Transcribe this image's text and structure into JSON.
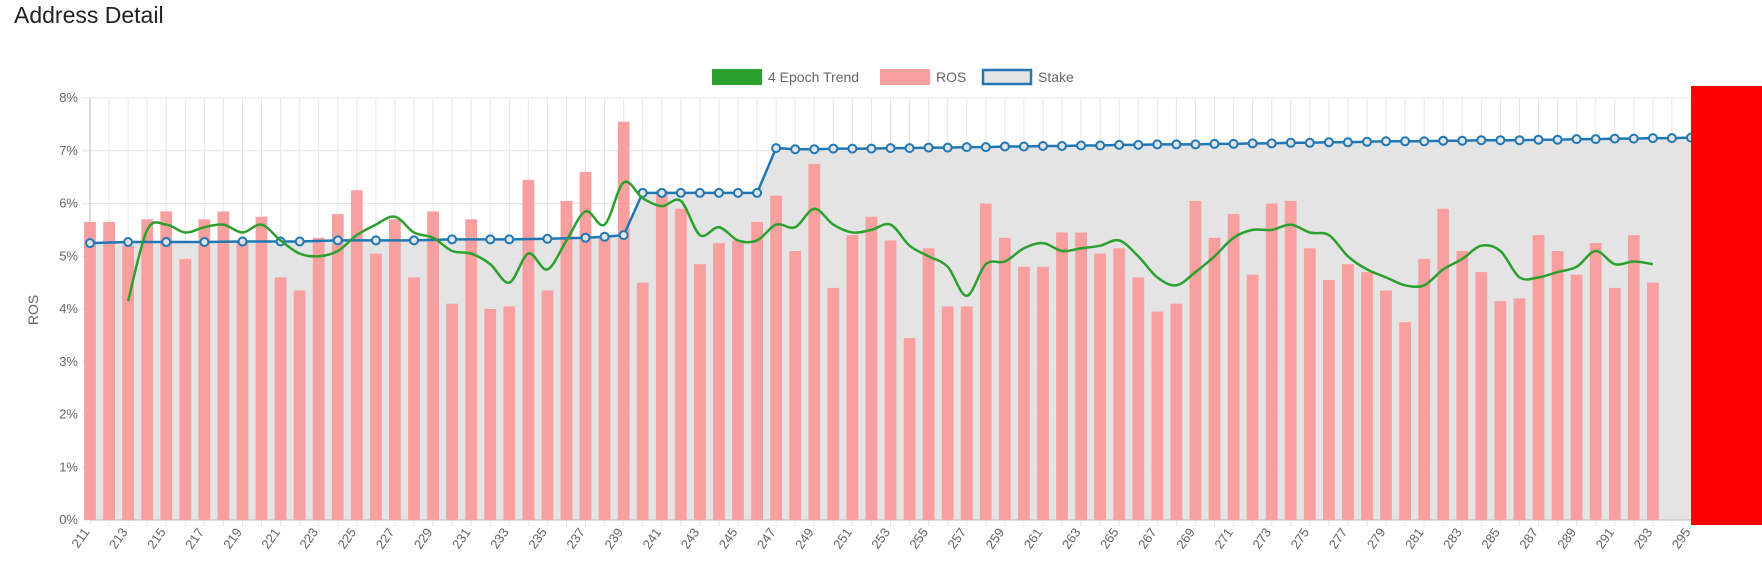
{
  "page": {
    "title": "Address Detail"
  },
  "colors": {
    "trend": "#2ca02c",
    "ros_fill": "#f8a0a0",
    "stake_line": "#1f77b4",
    "stake_fill": "#e4e4e4",
    "grid": "#e6e6e6",
    "overlay": "#ff0000"
  },
  "chart_data": {
    "type": "bar",
    "title": "",
    "legend": [
      "4 Epoch Trend",
      "ROS",
      "Stake"
    ],
    "legend_position": "top-center",
    "ylabel": "ROS",
    "ylim": [
      0,
      8
    ],
    "yticks": [
      "0%",
      "1%",
      "2%",
      "3%",
      "4%",
      "5%",
      "6%",
      "7%",
      "8%"
    ],
    "xlim": [
      211,
      295
    ],
    "grid": true,
    "series": [
      {
        "name": "ROS",
        "type": "bar",
        "x": [
          211,
          212,
          213,
          214,
          215,
          216,
          217,
          218,
          219,
          220,
          221,
          222,
          223,
          224,
          225,
          226,
          227,
          228,
          229,
          230,
          231,
          232,
          233,
          234,
          235,
          236,
          237,
          238,
          239,
          240,
          241,
          242,
          243,
          244,
          245,
          246,
          247,
          248,
          249,
          250,
          251,
          252,
          253,
          254,
          255,
          256,
          257,
          258,
          259,
          260,
          261,
          262,
          263,
          264,
          265,
          266,
          267,
          268,
          269,
          270,
          271,
          272,
          273,
          274,
          275,
          276,
          277,
          278,
          279,
          280,
          281,
          282,
          283,
          284,
          285,
          286,
          287,
          288,
          289,
          290,
          291,
          292,
          293
        ],
        "values": [
          5.65,
          5.65,
          5.2,
          5.7,
          5.85,
          4.95,
          5.7,
          5.85,
          5.25,
          5.75,
          4.6,
          4.35,
          5.35,
          5.8,
          6.25,
          5.05,
          5.7,
          4.6,
          5.85,
          4.1,
          5.7,
          4.0,
          4.05,
          6.45,
          4.35,
          6.05,
          6.6,
          5.35,
          7.55,
          4.5,
          6.25,
          5.9,
          4.85,
          5.25,
          5.3,
          5.65,
          6.15,
          5.1,
          6.75,
          4.4,
          5.4,
          5.75,
          5.3,
          3.45,
          5.15,
          4.05,
          4.05,
          6.0,
          5.35,
          4.8,
          4.8,
          5.45,
          5.45,
          5.05,
          5.15,
          4.6,
          3.95,
          4.1,
          6.05,
          5.35,
          5.8,
          4.65,
          6.0,
          6.05,
          5.15,
          4.55,
          4.85,
          4.7,
          4.35,
          3.75,
          4.95,
          5.9,
          5.1,
          4.7,
          4.15,
          4.2,
          5.4,
          5.1,
          4.65,
          5.25,
          4.4,
          5.4,
          4.5
        ]
      },
      {
        "name": "4 Epoch Trend",
        "type": "line",
        "x": [
          213,
          214,
          215,
          216,
          217,
          218,
          219,
          220,
          221,
          222,
          223,
          224,
          225,
          226,
          227,
          228,
          229,
          230,
          231,
          232,
          233,
          234,
          235,
          236,
          237,
          238,
          239,
          240,
          241,
          242,
          243,
          244,
          245,
          246,
          247,
          248,
          249,
          250,
          251,
          252,
          253,
          254,
          255,
          256,
          257,
          258,
          259,
          260,
          261,
          262,
          263,
          264,
          265,
          266,
          267,
          268,
          269,
          270,
          271,
          272,
          273,
          274,
          275,
          276,
          277,
          278,
          279,
          280,
          281,
          282,
          283,
          284,
          285,
          286,
          287,
          288,
          289,
          290,
          291,
          292,
          293
        ],
        "values": [
          4.15,
          5.5,
          5.6,
          5.45,
          5.55,
          5.6,
          5.45,
          5.6,
          5.3,
          5.05,
          5.0,
          5.1,
          5.4,
          5.6,
          5.75,
          5.45,
          5.35,
          5.1,
          5.05,
          4.85,
          4.5,
          5.05,
          4.75,
          5.3,
          5.85,
          5.6,
          6.4,
          6.1,
          5.95,
          6.05,
          5.4,
          5.55,
          5.3,
          5.3,
          5.6,
          5.55,
          5.9,
          5.6,
          5.45,
          5.5,
          5.6,
          5.2,
          5.0,
          4.8,
          4.25,
          4.85,
          4.9,
          5.15,
          5.25,
          5.1,
          5.15,
          5.2,
          5.3,
          5.0,
          4.6,
          4.45,
          4.7,
          5.0,
          5.35,
          5.5,
          5.5,
          5.6,
          5.45,
          5.4,
          5.0,
          4.75,
          4.6,
          4.45,
          4.45,
          4.75,
          4.95,
          5.2,
          5.1,
          4.6,
          4.6,
          4.7,
          4.8,
          5.1,
          4.85,
          4.9,
          4.85
        ]
      },
      {
        "name": "Stake",
        "type": "area",
        "x": [
          211,
          213,
          215,
          217,
          219,
          221,
          222,
          224,
          226,
          228,
          230,
          232,
          233,
          235,
          237,
          238,
          239,
          240,
          241,
          242,
          243,
          244,
          245,
          246,
          247,
          248,
          249,
          250,
          251,
          252,
          253,
          254,
          255,
          256,
          257,
          258,
          259,
          260,
          261,
          262,
          263,
          264,
          265,
          266,
          267,
          268,
          269,
          270,
          271,
          272,
          273,
          274,
          275,
          276,
          277,
          278,
          279,
          280,
          281,
          282,
          283,
          284,
          285,
          286,
          287,
          288,
          289,
          290,
          291,
          292,
          293,
          294,
          295
        ],
        "values": [
          5.25,
          5.27,
          5.27,
          5.27,
          5.28,
          5.28,
          5.28,
          5.3,
          5.3,
          5.3,
          5.32,
          5.32,
          5.32,
          5.33,
          5.35,
          5.37,
          5.4,
          6.2,
          6.2,
          6.2,
          6.2,
          6.2,
          6.2,
          6.2,
          7.05,
          7.03,
          7.03,
          7.04,
          7.04,
          7.04,
          7.05,
          7.05,
          7.06,
          7.06,
          7.07,
          7.07,
          7.08,
          7.08,
          7.09,
          7.09,
          7.1,
          7.1,
          7.11,
          7.11,
          7.12,
          7.12,
          7.12,
          7.13,
          7.13,
          7.14,
          7.14,
          7.15,
          7.15,
          7.16,
          7.16,
          7.17,
          7.18,
          7.18,
          7.18,
          7.19,
          7.19,
          7.2,
          7.2,
          7.2,
          7.21,
          7.21,
          7.22,
          7.22,
          7.23,
          7.23,
          7.24,
          7.24,
          7.25
        ]
      }
    ]
  }
}
